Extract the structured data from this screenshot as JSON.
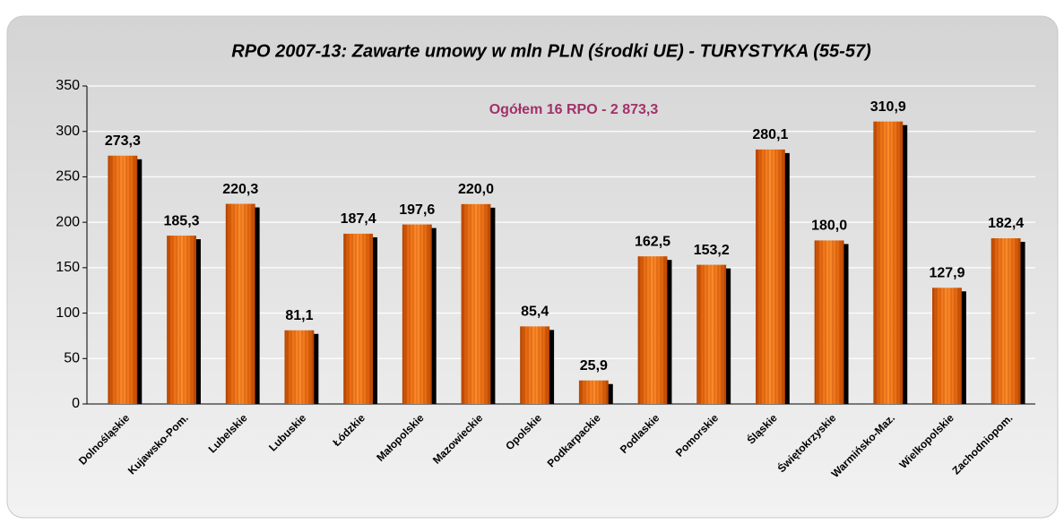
{
  "chart_data": {
    "type": "bar",
    "title": "RPO 2007-13: Zawarte umowy w mln PLN (środki UE) - TURYSTYKA (55-57)",
    "annotation": "Ogółem 16 RPO - 2 873,3",
    "categories": [
      "Dolnośląskie",
      "Kujawsko-Pom.",
      "Lubelskie",
      "Lubuskie",
      "Łódzkie",
      "Małopolskie",
      "Mazowieckie",
      "Opolskie",
      "Podkarpackie",
      "Podlaskie",
      "Pomorskie",
      "Śląskie",
      "Świętokrzyskie",
      "Warmińsko-Maz.",
      "Wielkopolskie",
      "Zachodniopom."
    ],
    "values": [
      273.3,
      185.3,
      220.3,
      81.1,
      187.4,
      197.6,
      220.0,
      85.4,
      25.9,
      162.5,
      153.2,
      280.1,
      180.0,
      310.9,
      127.9,
      182.4
    ],
    "value_labels": [
      "273,3",
      "185,3",
      "220,3",
      "81,1",
      "187,4",
      "197,6",
      "220,0",
      "85,4",
      "25,9",
      "162,5",
      "153,2",
      "280,1",
      "180,0",
      "310,9",
      "127,9",
      "182,4"
    ],
    "color": "#e8660e",
    "ylim": [
      0,
      350
    ],
    "yticks": [
      0,
      50,
      100,
      150,
      200,
      250,
      300,
      350
    ],
    "grid": true
  }
}
